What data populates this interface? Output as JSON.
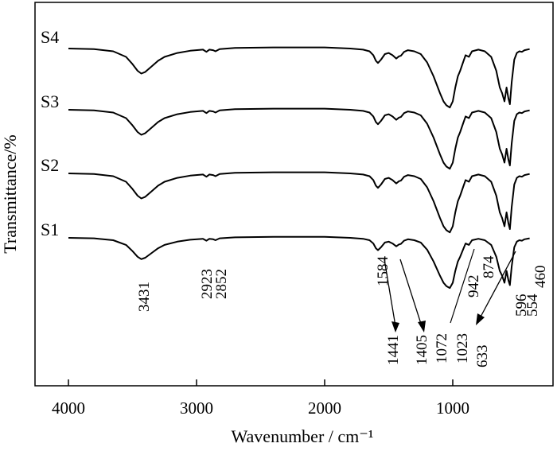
{
  "chart_data": {
    "type": "line",
    "title": "",
    "xlabel": "Wavenumber / cm⁻¹",
    "ylabel": "Transmittance/%",
    "xlim": [
      4200,
      350
    ],
    "x_reversed": true,
    "x_ticks": [
      4000,
      3000,
      2000,
      1000
    ],
    "y_ticks": [],
    "grid": false,
    "legend": "none",
    "series": [
      {
        "name": "S4",
        "offset": 3
      },
      {
        "name": "S3",
        "offset": 2
      },
      {
        "name": "S2",
        "offset": 1
      },
      {
        "name": "S1",
        "offset": 0
      }
    ],
    "profile_points": [
      [
        4000,
        0
      ],
      [
        3800,
        -0.01
      ],
      [
        3650,
        -0.05
      ],
      [
        3550,
        -0.15
      ],
      [
        3500,
        -0.28
      ],
      [
        3460,
        -0.4
      ],
      [
        3431,
        -0.45
      ],
      [
        3400,
        -0.42
      ],
      [
        3350,
        -0.32
      ],
      [
        3300,
        -0.22
      ],
      [
        3250,
        -0.15
      ],
      [
        3150,
        -0.08
      ],
      [
        3050,
        -0.04
      ],
      [
        2950,
        -0.02
      ],
      [
        2923,
        -0.06
      ],
      [
        2900,
        -0.02
      ],
      [
        2870,
        -0.03
      ],
      [
        2852,
        -0.05
      ],
      [
        2820,
        -0.01
      ],
      [
        2700,
        0.01
      ],
      [
        2400,
        0.02
      ],
      [
        2000,
        0.02
      ],
      [
        1800,
        0.0
      ],
      [
        1700,
        -0.02
      ],
      [
        1650,
        -0.05
      ],
      [
        1620,
        -0.12
      ],
      [
        1600,
        -0.22
      ],
      [
        1584,
        -0.26
      ],
      [
        1560,
        -0.2
      ],
      [
        1530,
        -0.1
      ],
      [
        1500,
        -0.08
      ],
      [
        1470,
        -0.12
      ],
      [
        1441,
        -0.18
      ],
      [
        1420,
        -0.14
      ],
      [
        1405,
        -0.13
      ],
      [
        1380,
        -0.06
      ],
      [
        1350,
        -0.03
      ],
      [
        1300,
        -0.05
      ],
      [
        1250,
        -0.1
      ],
      [
        1200,
        -0.25
      ],
      [
        1150,
        -0.5
      ],
      [
        1100,
        -0.8
      ],
      [
        1072,
        -0.95
      ],
      [
        1050,
        -1.02
      ],
      [
        1023,
        -1.06
      ],
      [
        1000,
        -0.95
      ],
      [
        980,
        -0.7
      ],
      [
        960,
        -0.5
      ],
      [
        942,
        -0.4
      ],
      [
        920,
        -0.25
      ],
      [
        900,
        -0.12
      ],
      [
        874,
        -0.15
      ],
      [
        850,
        -0.05
      ],
      [
        800,
        -0.02
      ],
      [
        750,
        -0.05
      ],
      [
        700,
        -0.15
      ],
      [
        660,
        -0.4
      ],
      [
        633,
        -0.7
      ],
      [
        615,
        -0.8
      ],
      [
        596,
        -0.95
      ],
      [
        580,
        -0.7
      ],
      [
        565,
        -0.9
      ],
      [
        554,
        -1.0
      ],
      [
        540,
        -0.6
      ],
      [
        520,
        -0.2
      ],
      [
        500,
        -0.08
      ],
      [
        480,
        -0.05
      ],
      [
        460,
        -0.06
      ],
      [
        440,
        -0.03
      ],
      [
        400,
        -0.01
      ]
    ],
    "annotations": [
      {
        "text": "3431",
        "x": 3431
      },
      {
        "text": "2923",
        "x": 2923
      },
      {
        "text": "2852",
        "x": 2852
      },
      {
        "text": "1584",
        "x": 1584
      },
      {
        "text": "1441",
        "x": 1441,
        "arrow": true
      },
      {
        "text": "1405",
        "x": 1405,
        "arrow": true
      },
      {
        "text": "1072",
        "x": 1072
      },
      {
        "text": "1023",
        "x": 1023
      },
      {
        "text": "942",
        "x": 942
      },
      {
        "text": "874",
        "x": 874
      },
      {
        "text": "633",
        "x": 633,
        "arrow": true
      },
      {
        "text": "596",
        "x": 596
      },
      {
        "text": "554",
        "x": 554
      },
      {
        "text": "460",
        "x": 460
      }
    ]
  }
}
